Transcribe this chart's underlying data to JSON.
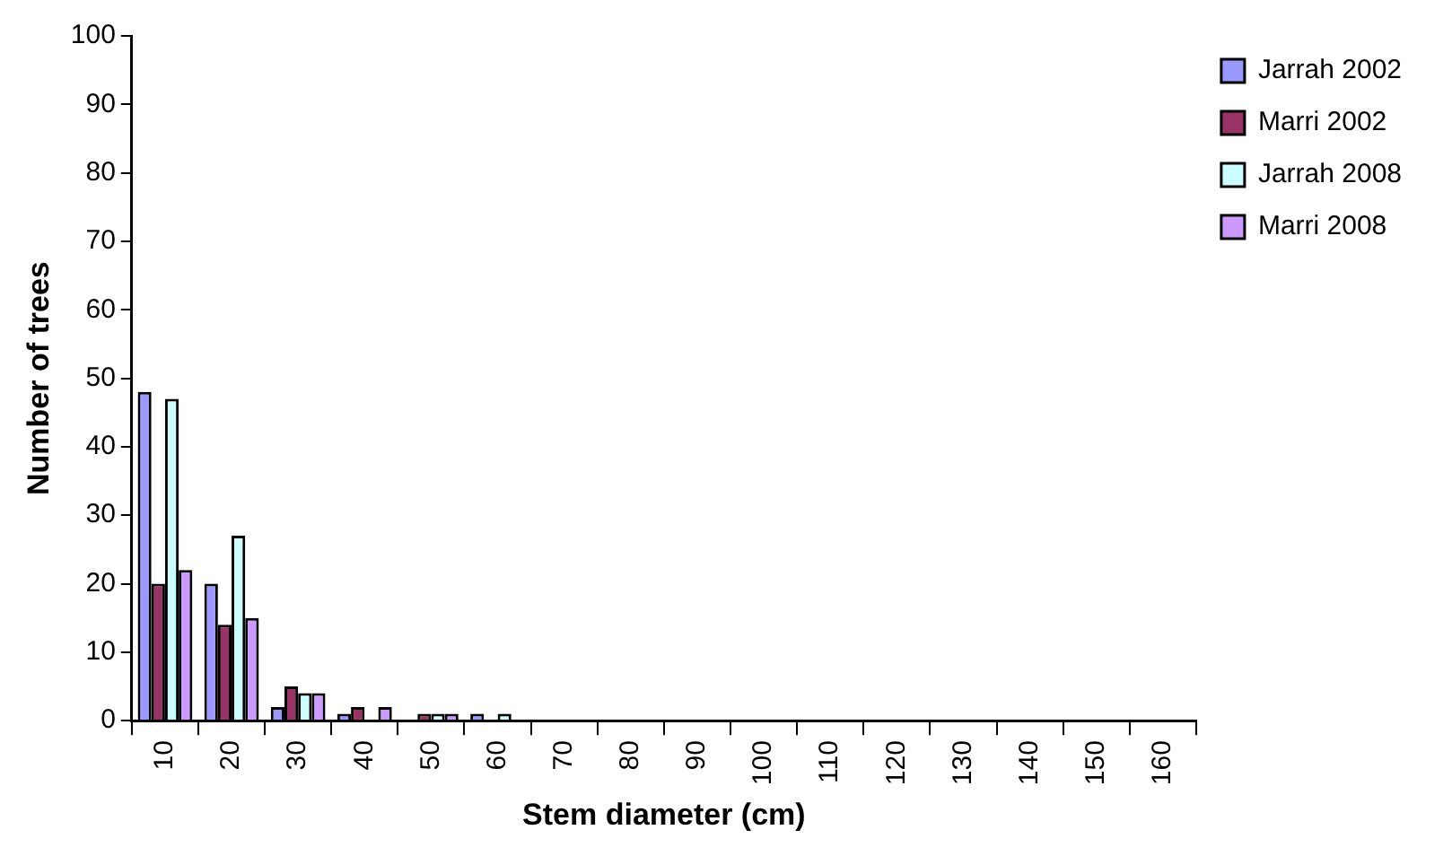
{
  "chart_data": {
    "type": "bar",
    "xlabel": "Stem diameter (cm)",
    "ylabel": "Number of trees",
    "categories": [
      "10",
      "20",
      "30",
      "40",
      "50",
      "60",
      "70",
      "80",
      "90",
      "100",
      "110",
      "120",
      "130",
      "140",
      "150",
      "160"
    ],
    "series": [
      {
        "name": "Jarrah 2002",
        "color": "#9999ff",
        "values": [
          48,
          20,
          2,
          1,
          0,
          1,
          0,
          0,
          0,
          0,
          0,
          0,
          0,
          0,
          0,
          0
        ]
      },
      {
        "name": "Marri 2002",
        "color": "#993366",
        "values": [
          20,
          14,
          5,
          2,
          1,
          0,
          0,
          0,
          0,
          0,
          0,
          0,
          0,
          0,
          0,
          0
        ]
      },
      {
        "name": "Jarrah 2008",
        "color": "#ccffff",
        "values": [
          47,
          27,
          4,
          0,
          1,
          1,
          0,
          0,
          0,
          0,
          0,
          0,
          0,
          0,
          0,
          0
        ]
      },
      {
        "name": "Marri 2008",
        "color": "#cc99ff",
        "values": [
          22,
          15,
          4,
          2,
          1,
          0,
          0,
          0,
          0,
          0,
          0,
          0,
          0,
          0,
          0,
          0
        ]
      }
    ],
    "ylim": [
      0,
      100
    ],
    "yticks": [
      0,
      10,
      20,
      30,
      40,
      50,
      60,
      70,
      80,
      90,
      100
    ],
    "grid": false,
    "legend": "right"
  }
}
